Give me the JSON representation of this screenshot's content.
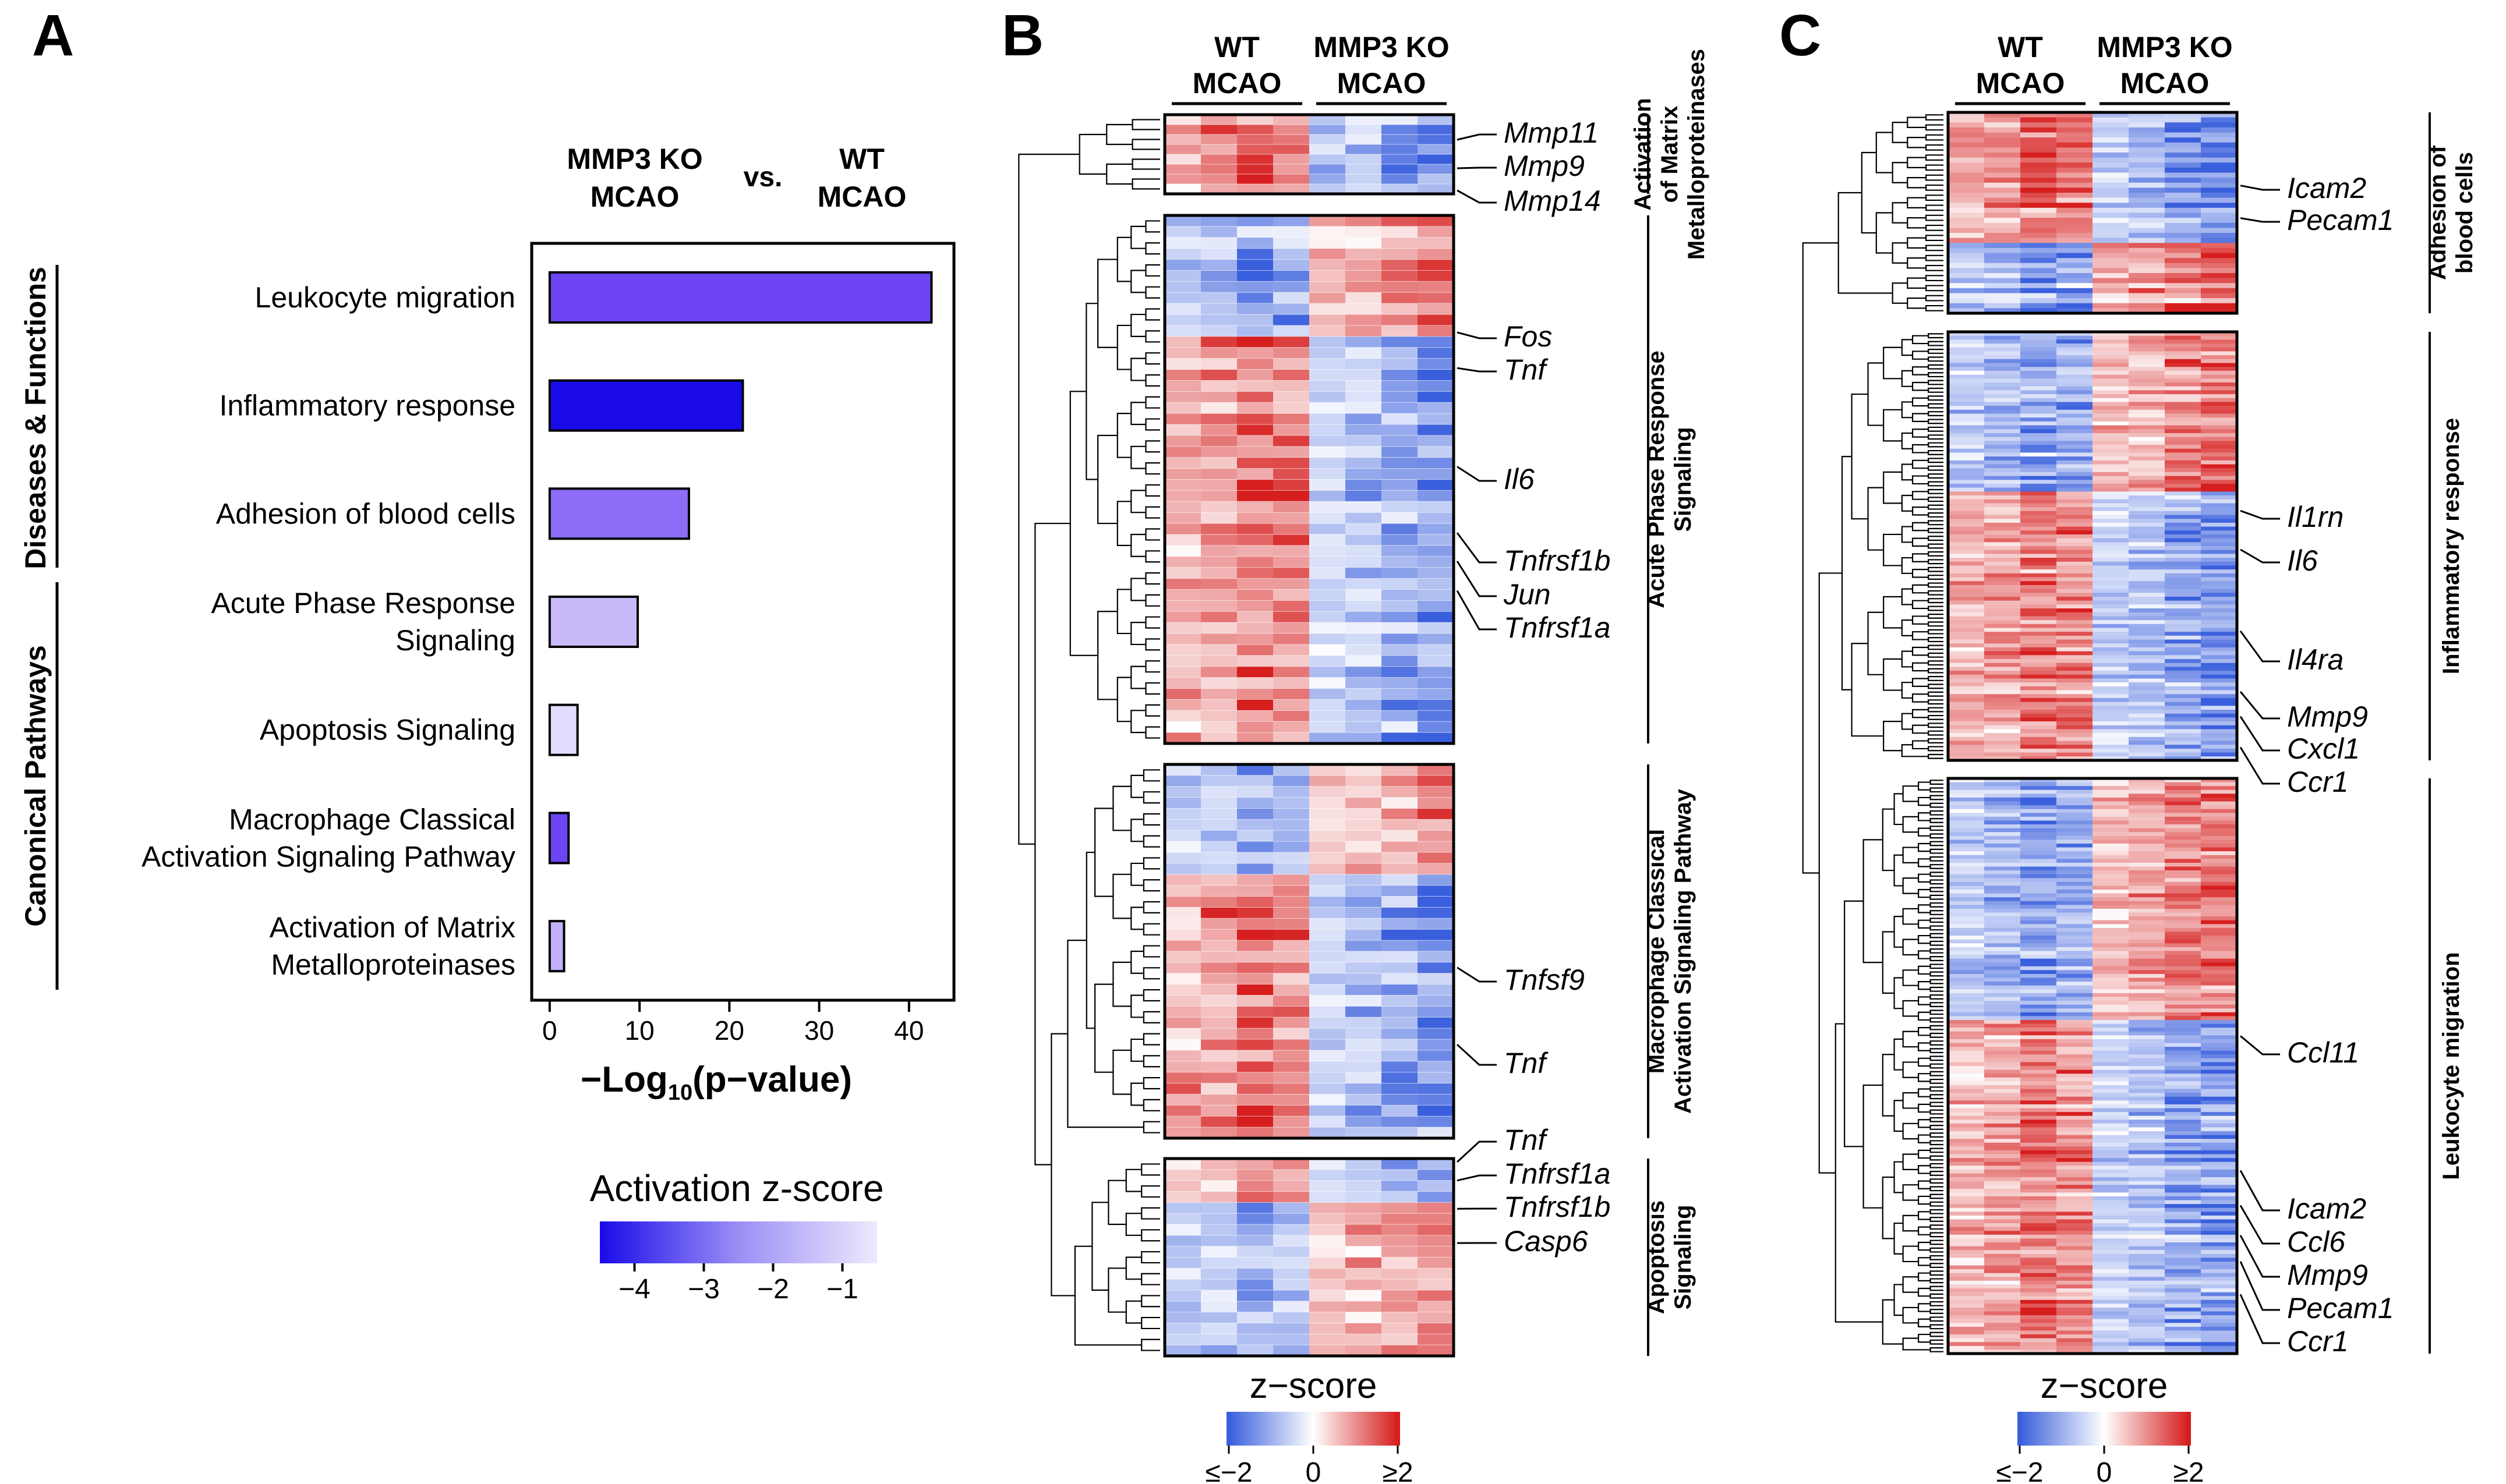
{
  "panels": {
    "a": "A",
    "b": "B",
    "c": "C"
  },
  "panel_a": {
    "header": {
      "group_left": [
        "MMP3 KO",
        "MCAO"
      ],
      "vs": "vs.",
      "group_right": [
        "WT",
        "MCAO"
      ]
    },
    "section_labels": {
      "top": "Diseases & Functions",
      "bottom": "Canonical Pathways"
    },
    "legend": {
      "title": "Activation z-score",
      "ticks": [
        "−4",
        "−3",
        "−2",
        "−1"
      ],
      "tick_values": [
        -4,
        -3,
        -2,
        -1
      ],
      "range": [
        -4.5,
        -0.5
      ],
      "colors": [
        "#1a0bea",
        "#9b8ff5",
        "#ede9fd"
      ]
    }
  },
  "chart_data": [
    {
      "type": "bar",
      "orientation": "horizontal",
      "title": "MMP3 KO MCAO vs. WT MCAO",
      "xlabel": "−Log10(p-value)",
      "xlabel_parts": {
        "main": "−Log",
        "sub": "10",
        "rest": "(p−value)"
      },
      "xlim": [
        -2,
        45
      ],
      "xticks": [
        0,
        10,
        20,
        30,
        40
      ],
      "xtick_labels": [
        "0",
        "10",
        "20",
        "30",
        "40"
      ],
      "categories": [
        [
          "Leukocyte migration"
        ],
        [
          "Inflammatory response"
        ],
        [
          "Adhesion of blood cells"
        ],
        [
          "Acute Phase Response",
          "Signaling"
        ],
        [
          "Apoptosis Signaling"
        ],
        [
          "Macrophage Classical",
          "Activation Signaling Pathway"
        ],
        [
          "Activation of Matrix",
          "Metalloproteinases"
        ]
      ],
      "values": [
        42.5,
        21.5,
        15.5,
        9.8,
        3.1,
        2.1,
        1.6
      ],
      "colors": [
        "#6e45f2",
        "#1a0be8",
        "#8d6df5",
        "#c9b8fa",
        "#e4dcfd",
        "#6e45f2",
        "#c2b0fa"
      ]
    },
    {
      "type": "heatmap",
      "title": "Panel B",
      "columns": 8,
      "groups": [
        {
          "label": [
            "WT",
            "MCAO"
          ],
          "columns": 4
        },
        {
          "label": [
            "MMP3 KO",
            "MCAO"
          ],
          "columns": 4
        }
      ],
      "blocks": [
        {
          "name": "Activation of Matrix Metalloproteinases",
          "label": [
            "Activation",
            "of Matrix",
            "Metalloproteinases"
          ],
          "rows": 8,
          "pattern": "wt-up",
          "genes": [
            "Mmp11",
            "Mmp9",
            "Mmp14"
          ]
        },
        {
          "name": "Acute Phase Response Signaling",
          "label": [
            "Acute Phase Response",
            "Signaling"
          ],
          "rows": 48,
          "pattern": "ko-then-wt",
          "split": 0.22,
          "genes": [
            "Fos",
            "Tnf",
            "Il6",
            "Tnfrsf1b",
            "Jun",
            "Tnfrsf1a"
          ]
        },
        {
          "name": "Macrophage Classical Activation Signaling Pathway",
          "label": [
            "Macrophage Classical",
            "Activation Signaling Pathway"
          ],
          "rows": 34,
          "pattern": "ko-then-wt",
          "split": 0.3,
          "genes": [
            "Tnfsf9",
            "Tnf"
          ]
        },
        {
          "name": "Apoptosis Signaling",
          "label": [
            "Apoptosis",
            "Signaling"
          ],
          "rows": 18,
          "pattern": "wt-then-ko",
          "split": 0.25,
          "genes": [
            "Tnf",
            "Tnfrsf1a",
            "Tnfrsf1b",
            "Casp6"
          ]
        }
      ],
      "color_scale": {
        "min": -2,
        "max": 2,
        "colors": [
          "#3a5fdc",
          "#ffffff",
          "#d61e1e"
        ]
      },
      "colorbar": {
        "title": "z−score",
        "ticks": [
          "≤−2",
          "0",
          "≥2"
        ],
        "tick_values": [
          -2,
          0,
          2
        ]
      }
    },
    {
      "type": "heatmap",
      "title": "Panel C",
      "columns": 8,
      "groups": [
        {
          "label": [
            "WT",
            "MCAO"
          ],
          "columns": 4
        },
        {
          "label": [
            "MMP3 KO",
            "MCAO"
          ],
          "columns": 4
        }
      ],
      "blocks": [
        {
          "name": "Adhesion of blood cells",
          "label": [
            "Adhesion of",
            "blood cells"
          ],
          "rows": 40,
          "pattern": "wt-then-ko",
          "split": 0.66,
          "genes": [
            "Icam2",
            "Pecam1"
          ]
        },
        {
          "name": "Inflammatory response",
          "label": [
            "Inflammatory response"
          ],
          "rows": 110,
          "pattern": "ko-then-wt",
          "split": 0.37,
          "genes": [
            "Il1rn",
            "Il6",
            "Il4ra",
            "Mmp9",
            "Cxcl1",
            "Ccr1"
          ]
        },
        {
          "name": "Leukocyte migration",
          "label": [
            "Leukocyte migration"
          ],
          "rows": 150,
          "pattern": "ko-then-wt",
          "split": 0.42,
          "genes": [
            "Ccl11",
            "Icam2",
            "Ccl6",
            "Mmp9",
            "Pecam1",
            "Ccr1"
          ]
        }
      ],
      "color_scale": {
        "min": -2,
        "max": 2,
        "colors": [
          "#3a5fdc",
          "#ffffff",
          "#d61e1e"
        ]
      },
      "colorbar": {
        "title": "z−score",
        "ticks": [
          "≤−2",
          "0",
          "≥2"
        ],
        "tick_values": [
          -2,
          0,
          2
        ]
      }
    }
  ]
}
